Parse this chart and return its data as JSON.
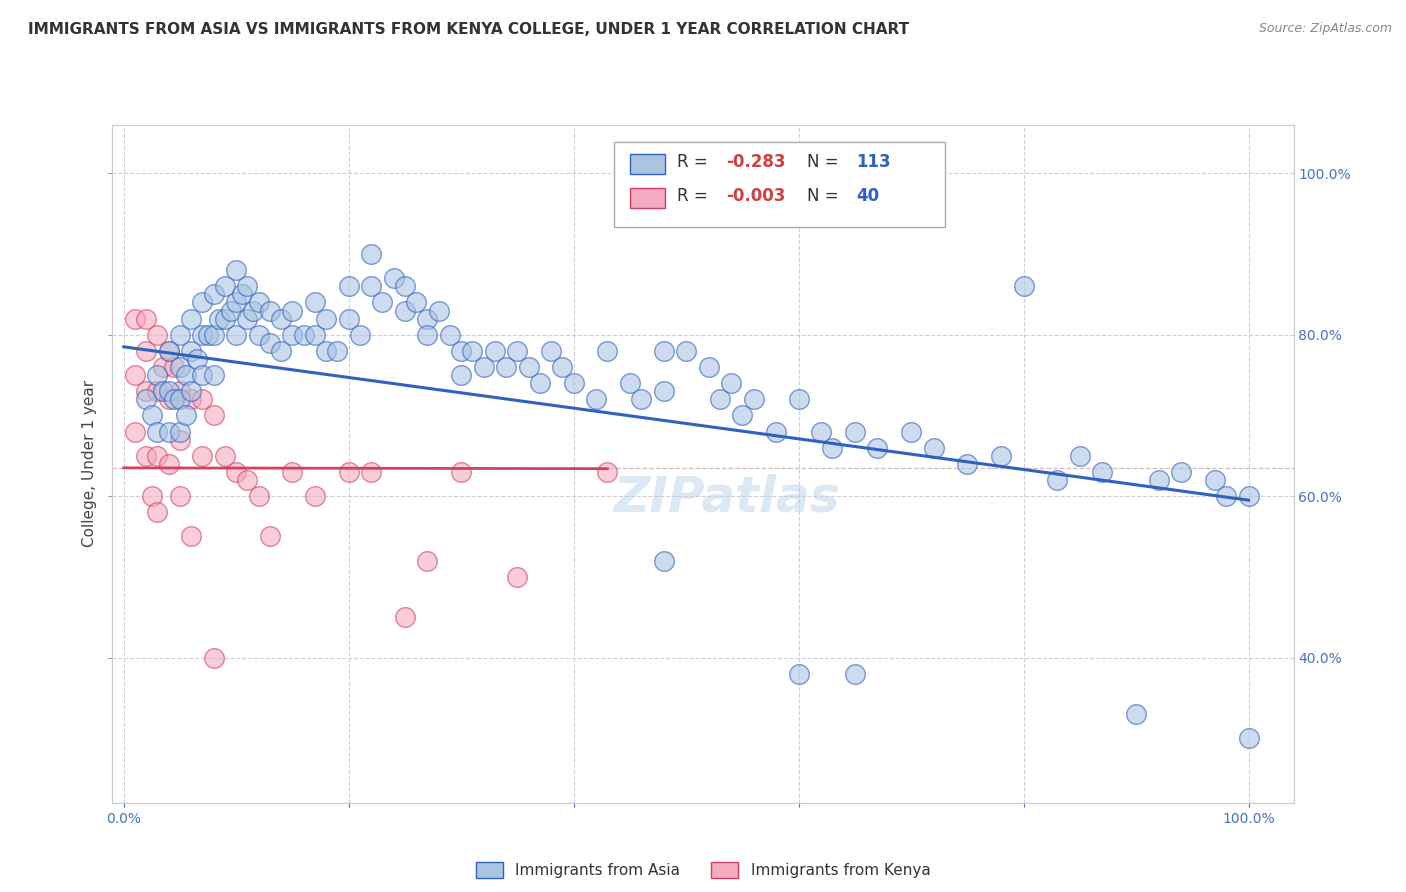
{
  "title": "IMMIGRANTS FROM ASIA VS IMMIGRANTS FROM KENYA COLLEGE, UNDER 1 YEAR CORRELATION CHART",
  "source": "Source: ZipAtlas.com",
  "ylabel": "College, Under 1 year",
  "r_asia": -0.283,
  "n_asia": 113,
  "r_kenya": -0.003,
  "n_kenya": 40,
  "color_asia": "#aac4e2",
  "color_kenya": "#f4aac0",
  "line_asia_color": "#3060c0",
  "line_kenya_color": "#d04060",
  "background_color": "#ffffff",
  "grid_color": "#cccccc",
  "asia_scatter_x": [
    0.02,
    0.025,
    0.03,
    0.03,
    0.035,
    0.04,
    0.04,
    0.04,
    0.045,
    0.05,
    0.05,
    0.05,
    0.05,
    0.055,
    0.055,
    0.06,
    0.06,
    0.06,
    0.065,
    0.07,
    0.07,
    0.07,
    0.075,
    0.08,
    0.08,
    0.08,
    0.085,
    0.09,
    0.09,
    0.095,
    0.1,
    0.1,
    0.1,
    0.105,
    0.11,
    0.11,
    0.115,
    0.12,
    0.12,
    0.13,
    0.13,
    0.14,
    0.14,
    0.15,
    0.15,
    0.16,
    0.17,
    0.17,
    0.18,
    0.18,
    0.19,
    0.2,
    0.2,
    0.21,
    0.22,
    0.22,
    0.23,
    0.24,
    0.25,
    0.25,
    0.26,
    0.27,
    0.27,
    0.28,
    0.29,
    0.3,
    0.3,
    0.31,
    0.32,
    0.33,
    0.34,
    0.35,
    0.36,
    0.37,
    0.38,
    0.39,
    0.4,
    0.42,
    0.43,
    0.45,
    0.46,
    0.48,
    0.48,
    0.5,
    0.52,
    0.53,
    0.54,
    0.55,
    0.56,
    0.58,
    0.6,
    0.62,
    0.63,
    0.65,
    0.67,
    0.7,
    0.72,
    0.75,
    0.78,
    0.8,
    0.83,
    0.85,
    0.87,
    0.9,
    0.92,
    0.94,
    0.97,
    0.98,
    1.0,
    1.0,
    0.48,
    0.6,
    0.65
  ],
  "asia_scatter_y": [
    0.72,
    0.7,
    0.75,
    0.68,
    0.73,
    0.78,
    0.73,
    0.68,
    0.72,
    0.8,
    0.76,
    0.72,
    0.68,
    0.75,
    0.7,
    0.82,
    0.78,
    0.73,
    0.77,
    0.84,
    0.8,
    0.75,
    0.8,
    0.85,
    0.8,
    0.75,
    0.82,
    0.86,
    0.82,
    0.83,
    0.88,
    0.84,
    0.8,
    0.85,
    0.86,
    0.82,
    0.83,
    0.84,
    0.8,
    0.83,
    0.79,
    0.82,
    0.78,
    0.83,
    0.8,
    0.8,
    0.84,
    0.8,
    0.82,
    0.78,
    0.78,
    0.86,
    0.82,
    0.8,
    0.9,
    0.86,
    0.84,
    0.87,
    0.86,
    0.83,
    0.84,
    0.82,
    0.8,
    0.83,
    0.8,
    0.78,
    0.75,
    0.78,
    0.76,
    0.78,
    0.76,
    0.78,
    0.76,
    0.74,
    0.78,
    0.76,
    0.74,
    0.72,
    0.78,
    0.74,
    0.72,
    0.78,
    0.73,
    0.78,
    0.76,
    0.72,
    0.74,
    0.7,
    0.72,
    0.68,
    0.72,
    0.68,
    0.66,
    0.68,
    0.66,
    0.68,
    0.66,
    0.64,
    0.65,
    0.86,
    0.62,
    0.65,
    0.63,
    0.33,
    0.62,
    0.63,
    0.62,
    0.6,
    0.3,
    0.6,
    0.52,
    0.38,
    0.38
  ],
  "kenya_scatter_x": [
    0.01,
    0.01,
    0.01,
    0.02,
    0.02,
    0.02,
    0.02,
    0.025,
    0.03,
    0.03,
    0.03,
    0.03,
    0.035,
    0.04,
    0.04,
    0.04,
    0.045,
    0.05,
    0.05,
    0.05,
    0.06,
    0.06,
    0.07,
    0.07,
    0.08,
    0.08,
    0.09,
    0.1,
    0.11,
    0.12,
    0.13,
    0.15,
    0.17,
    0.2,
    0.22,
    0.25,
    0.27,
    0.3,
    0.35,
    0.43
  ],
  "kenya_scatter_y": [
    0.82,
    0.75,
    0.68,
    0.82,
    0.78,
    0.73,
    0.65,
    0.6,
    0.8,
    0.73,
    0.65,
    0.58,
    0.76,
    0.78,
    0.72,
    0.64,
    0.76,
    0.73,
    0.67,
    0.6,
    0.72,
    0.55,
    0.72,
    0.65,
    0.7,
    0.4,
    0.65,
    0.63,
    0.62,
    0.6,
    0.55,
    0.63,
    0.6,
    0.63,
    0.63,
    0.45,
    0.52,
    0.63,
    0.5,
    0.63
  ],
  "legend_box_color": "#ffffff",
  "legend_border_color": "#aaaaaa",
  "asia_trend_x0": 0.0,
  "asia_trend_y0": 0.785,
  "asia_trend_x1": 1.0,
  "asia_trend_y1": 0.595,
  "kenya_trend_x0": 0.0,
  "kenya_trend_y0": 0.635,
  "kenya_trend_x1": 0.43,
  "kenya_trend_y1": 0.634,
  "hline_y": 0.635,
  "xlim": [
    -0.01,
    1.04
  ],
  "ylim": [
    0.22,
    1.06
  ]
}
